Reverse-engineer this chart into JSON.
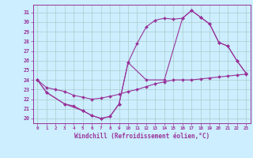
{
  "xlabel": "Windchill (Refroidissement éolien,°C)",
  "background_color": "#cceeff",
  "grid_color": "#aacccc",
  "line_color": "#993399",
  "xlim": [
    -0.5,
    23.5
  ],
  "ylim": [
    19.5,
    31.8
  ],
  "yticks": [
    20,
    21,
    22,
    23,
    24,
    25,
    26,
    27,
    28,
    29,
    30,
    31
  ],
  "xticks": [
    0,
    1,
    2,
    3,
    4,
    5,
    6,
    7,
    8,
    9,
    10,
    11,
    12,
    13,
    14,
    15,
    16,
    17,
    18,
    19,
    20,
    21,
    22,
    23
  ],
  "series": [
    {
      "x": [
        0,
        1,
        2,
        3,
        4,
        5,
        6,
        7,
        8,
        9,
        10,
        11,
        12,
        13,
        14,
        15,
        16,
        17,
        18,
        19,
        20,
        21,
        22,
        23
      ],
      "y": [
        24,
        23.2,
        23.0,
        22.8,
        22.4,
        22.2,
        22.0,
        22.1,
        22.3,
        22.5,
        22.8,
        23.0,
        23.3,
        23.6,
        23.8,
        24.0,
        24.0,
        24.0,
        24.1,
        24.2,
        24.3,
        24.4,
        24.5,
        24.6
      ]
    },
    {
      "x": [
        0,
        1,
        3,
        4,
        5,
        6,
        7,
        8,
        9,
        10,
        11,
        12,
        13,
        14,
        15,
        16,
        17,
        18,
        19,
        20,
        21,
        22,
        23
      ],
      "y": [
        24,
        22.7,
        21.5,
        21.3,
        20.8,
        20.3,
        20.0,
        20.2,
        21.5,
        25.8,
        27.8,
        29.5,
        30.2,
        30.4,
        30.3,
        30.4,
        31.2,
        30.5,
        29.8,
        27.9,
        27.5,
        26.0,
        24.7
      ]
    },
    {
      "x": [
        0,
        1,
        3,
        5,
        6,
        7,
        8,
        9,
        10,
        12,
        14,
        16,
        17,
        18,
        19,
        20,
        21,
        22,
        23
      ],
      "y": [
        24,
        22.7,
        21.5,
        20.8,
        20.3,
        20.0,
        20.2,
        21.5,
        25.8,
        24.0,
        24.0,
        30.4,
        31.2,
        30.5,
        29.8,
        27.9,
        27.5,
        26.0,
        24.7
      ]
    }
  ]
}
